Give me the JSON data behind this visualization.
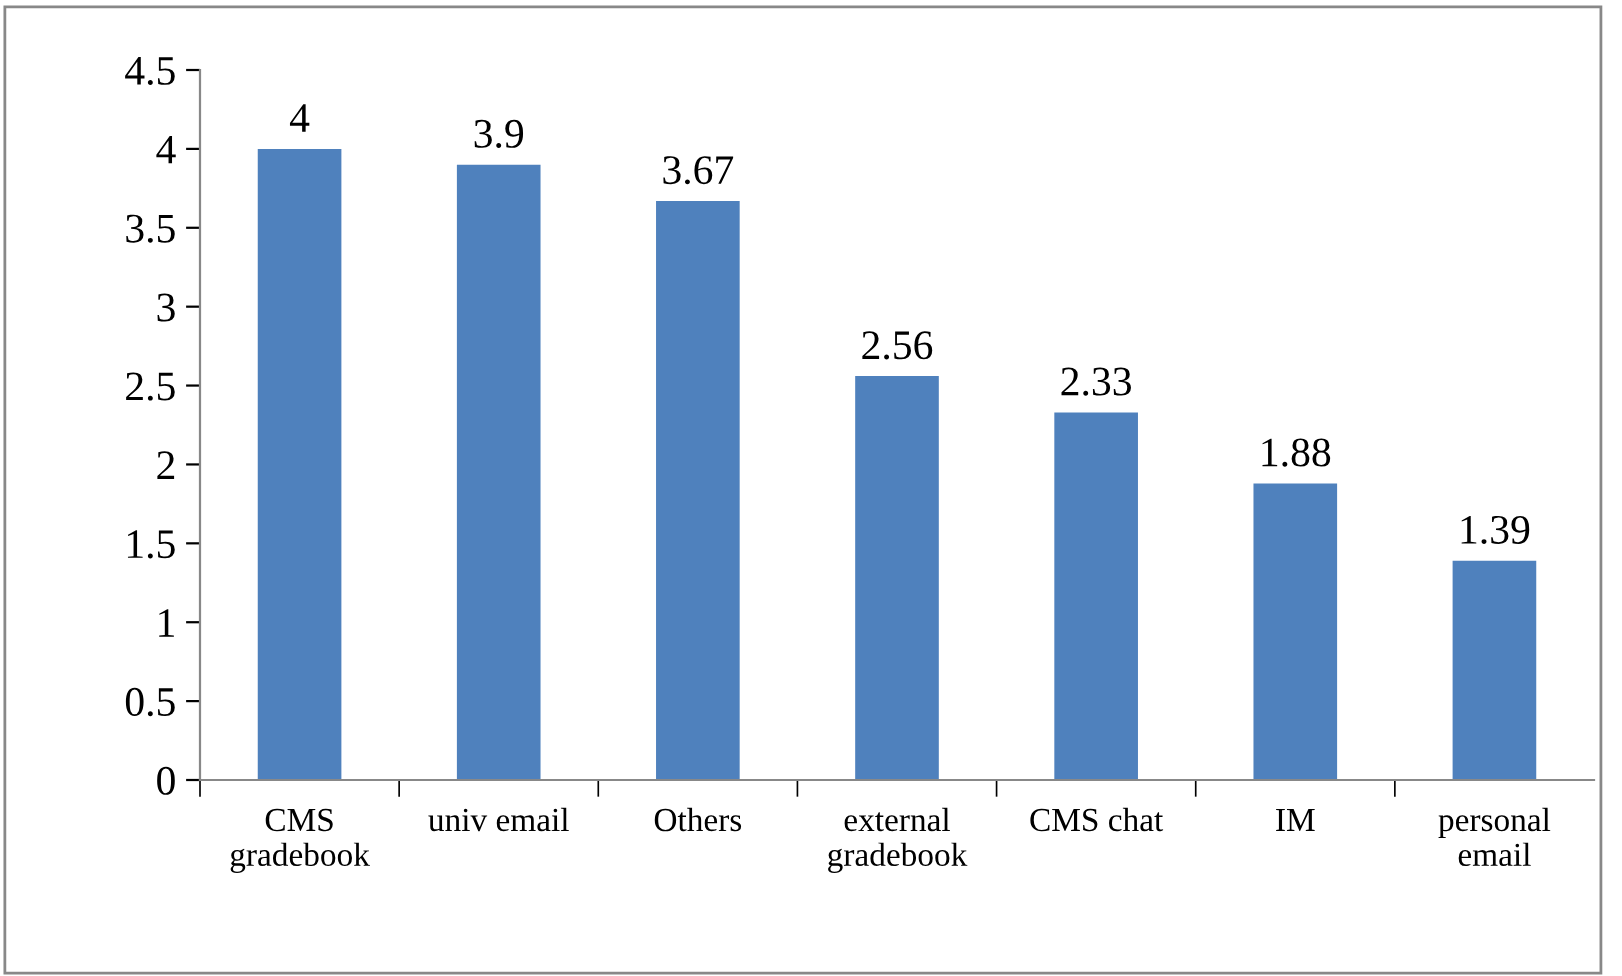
{
  "chart_data": {
    "type": "bar",
    "categories": [
      "CMS\ngradebook",
      "univ email",
      "Others",
      "external\ngradebook",
      "CMS chat",
      "IM",
      "personal\nemail"
    ],
    "values": [
      4,
      3.9,
      3.67,
      2.56,
      2.33,
      1.88,
      1.39
    ],
    "color": "#4f81bd",
    "ylim": [
      0,
      4.5
    ],
    "yticks": [
      0,
      0.5,
      1,
      1.5,
      2,
      2.5,
      3,
      3.5,
      4,
      4.5
    ],
    "data_labels": true,
    "grid": false,
    "legend": false
  }
}
